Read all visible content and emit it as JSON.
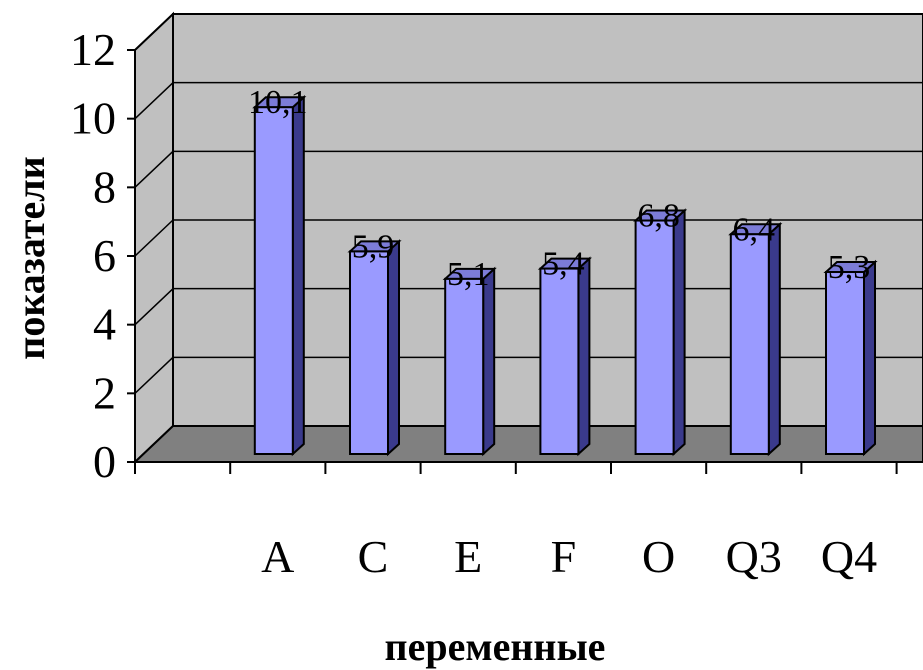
{
  "chart_data": {
    "type": "bar",
    "categories": [
      "",
      "A",
      "C",
      "E",
      "F",
      "O",
      "Q3",
      "Q4"
    ],
    "values": [
      null,
      10.1,
      5.9,
      5.1,
      5.4,
      6.8,
      6.4,
      5.3
    ],
    "data_labels": [
      "",
      "10,1",
      "5,9",
      "5,1",
      "5,4",
      "6,8",
      "6,4",
      "5,3"
    ],
    "xlabel": "переменные",
    "ylabel": "показатели",
    "ylim": [
      0,
      12
    ],
    "yticks": [
      "0",
      "2",
      "4",
      "6",
      "8",
      "10",
      "12"
    ],
    "grid": true,
    "style": "3d-column",
    "colors": {
      "bar_front": "#9a9aff",
      "bar_top": "#7c7cd8",
      "bar_side": "#3a3a8c",
      "wall": "#c0c0c0",
      "floor": "#808080"
    }
  }
}
